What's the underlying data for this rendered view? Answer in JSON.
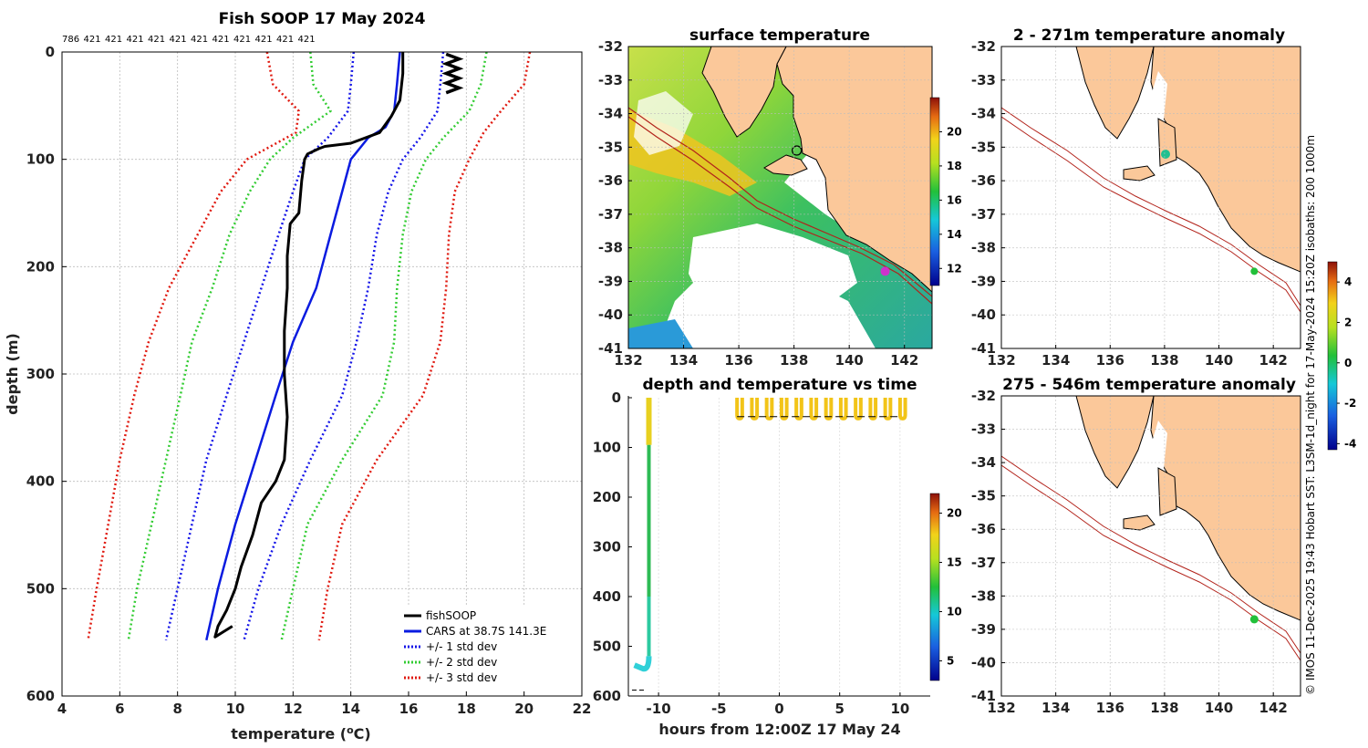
{
  "colors": {
    "fishsoop": "#000000",
    "cars": "#0a1be0",
    "std1": "#1515e8",
    "std2": "#33cc33",
    "std3": "#e01a10",
    "land": "#fbc89a",
    "isobath": "#b2221a"
  },
  "chart_data": [
    {
      "type": "line",
      "title": "Fish SOOP 17 May 2024",
      "xlabel": "temperature (",
      "xlabel_sup": "o",
      "xlabel_unit": "C)",
      "ylabel": "depth (m)",
      "xlim": [
        4,
        22
      ],
      "ylim": [
        600,
        0
      ],
      "xticks": [
        "4",
        "6",
        "8",
        "10",
        "12",
        "14",
        "16",
        "18",
        "20",
        "22"
      ],
      "yticks": [
        "0",
        "100",
        "200",
        "300",
        "400",
        "500",
        "600"
      ],
      "top_counts": [
        "786",
        "421",
        "421",
        "421",
        "421",
        "421",
        "421",
        "421",
        "421",
        "421",
        "421",
        "421"
      ],
      "legend": [
        "fishSOOP",
        "CARS at 38.7S 141.3E",
        "+/- 1 std dev",
        "+/- 2 std dev",
        "+/- 3 std dev"
      ],
      "series": [
        {
          "name": "CARS at 38.7S 141.3E",
          "depth": [
            0,
            30,
            55,
            70,
            80,
            100,
            130,
            170,
            220,
            270,
            320,
            380,
            440,
            500,
            548
          ],
          "temp": [
            15.7,
            15.6,
            15.5,
            15.2,
            14.6,
            14.0,
            13.7,
            13.3,
            12.8,
            12.0,
            11.4,
            10.7,
            10.0,
            9.4,
            9.0
          ]
        },
        {
          "name": "+/- 1 std dev (low)",
          "depth": [
            0,
            30,
            55,
            80,
            100,
            130,
            170,
            220,
            270,
            320,
            380,
            440,
            500,
            548
          ],
          "temp": [
            14.1,
            14.0,
            13.9,
            13.2,
            12.4,
            12.0,
            11.5,
            10.9,
            10.3,
            9.7,
            9.0,
            8.5,
            8.0,
            7.6
          ]
        },
        {
          "name": "+/- 1 std dev (high)",
          "depth": [
            0,
            30,
            55,
            80,
            100,
            130,
            170,
            220,
            270,
            320,
            380,
            440,
            500,
            548
          ],
          "temp": [
            17.2,
            17.1,
            17.0,
            16.4,
            15.8,
            15.3,
            14.9,
            14.6,
            14.2,
            13.7,
            12.6,
            11.6,
            10.8,
            10.3
          ]
        },
        {
          "name": "+/- 2 std dev (low)",
          "depth": [
            0,
            30,
            55,
            80,
            100,
            130,
            170,
            220,
            270,
            320,
            380,
            440,
            500,
            548
          ],
          "temp": [
            12.6,
            12.7,
            13.3,
            12.0,
            11.2,
            10.5,
            9.8,
            9.2,
            8.5,
            8.1,
            7.6,
            7.1,
            6.6,
            6.3
          ]
        },
        {
          "name": "+/- 2 std dev (high)",
          "depth": [
            0,
            30,
            55,
            80,
            100,
            130,
            170,
            220,
            270,
            320,
            380,
            440,
            500,
            548
          ],
          "temp": [
            18.7,
            18.5,
            18.1,
            17.2,
            16.6,
            16.1,
            15.8,
            15.6,
            15.5,
            15.1,
            13.7,
            12.5,
            12.0,
            11.6
          ]
        },
        {
          "name": "+/- 3 std dev (low)",
          "depth": [
            0,
            30,
            55,
            75,
            100,
            130,
            170,
            220,
            270,
            320,
            380,
            440,
            500,
            548
          ],
          "temp": [
            11.1,
            11.3,
            12.2,
            12.1,
            10.4,
            9.5,
            8.7,
            7.7,
            7.0,
            6.5,
            6.0,
            5.6,
            5.2,
            4.9
          ]
        },
        {
          "name": "+/- 3 std dev (high)",
          "depth": [
            0,
            30,
            55,
            75,
            100,
            130,
            170,
            220,
            270,
            320,
            380,
            440,
            500,
            548
          ],
          "temp": [
            20.2,
            20.0,
            19.2,
            18.6,
            18.1,
            17.6,
            17.4,
            17.3,
            17.1,
            16.5,
            14.9,
            13.7,
            13.2,
            12.9
          ]
        },
        {
          "name": "fishSOOP",
          "depth": [
            0,
            20,
            45,
            60,
            75,
            85,
            88,
            90,
            95,
            100,
            120,
            150,
            160,
            190,
            220,
            260,
            300,
            340,
            380,
            400,
            420,
            450,
            480,
            500,
            520,
            535,
            545,
            540,
            535
          ],
          "temp": [
            15.8,
            15.8,
            15.7,
            15.4,
            15.0,
            14.0,
            13.1,
            12.9,
            12.5,
            12.4,
            12.3,
            12.2,
            11.9,
            11.8,
            11.8,
            11.7,
            11.7,
            11.8,
            11.7,
            11.4,
            10.9,
            10.6,
            10.2,
            10.0,
            9.7,
            9.4,
            9.3,
            9.6,
            9.9
          ]
        }
      ]
    },
    {
      "type": "heatmap",
      "title": "surface temperature",
      "xticks": [
        "132",
        "134",
        "136",
        "138",
        "140",
        "142"
      ],
      "yticks": [
        "-32",
        "-33",
        "-34",
        "-35",
        "-36",
        "-37",
        "-38",
        "-39",
        "-40",
        "-41"
      ],
      "xlim": [
        132,
        143
      ],
      "ylim": [
        -41,
        -32
      ],
      "colorbar": {
        "range": [
          11,
          22
        ],
        "ticks": [
          "12",
          "14",
          "16",
          "18",
          "20"
        ]
      },
      "marker_lonlat": [
        141.3,
        -38.7
      ],
      "ring_lonlat": [
        138.1,
        -35.1
      ]
    },
    {
      "type": "scatter",
      "title": "depth and temperature vs time",
      "xlabel": "hours from 12:00Z 17 May 24",
      "xlim": [
        -12.5,
        12.5
      ],
      "ylim": [
        600,
        0
      ],
      "xticks": [
        "-10",
        "-5",
        "0",
        "5",
        "10"
      ],
      "yticks": [
        "0",
        "100",
        "200",
        "300",
        "400",
        "500",
        "600"
      ],
      "colorbar": {
        "range": [
          3,
          22
        ],
        "ticks": [
          "5",
          "10",
          "15",
          "20"
        ]
      },
      "dives": {
        "count": 12,
        "start_hour": -3.5,
        "end_hour": 10,
        "max_depth": 42,
        "temp_c": 18
      },
      "cast": {
        "hour": -10.8
      }
    },
    {
      "type": "heatmap",
      "title": "2 - 271m temperature anomaly",
      "xticks": [
        "132",
        "134",
        "136",
        "138",
        "140",
        "142"
      ],
      "yticks": [
        "-32",
        "-33",
        "-34",
        "-35",
        "-36",
        "-37",
        "-38",
        "-39",
        "-40",
        "-41"
      ],
      "xlim": [
        132,
        143
      ],
      "ylim": [
        -41,
        -32
      ],
      "colorbar": {
        "range": [
          -4.3,
          5
        ],
        "ticks": [
          "-4",
          "-2",
          "0",
          "2",
          "4"
        ]
      }
    },
    {
      "type": "heatmap",
      "title": "275 - 546m temperature anomaly",
      "xticks": [
        "132",
        "134",
        "136",
        "138",
        "140",
        "142"
      ],
      "yticks": [
        "-32",
        "-33",
        "-34",
        "-35",
        "-36",
        "-37",
        "-38",
        "-39",
        "-40",
        "-41"
      ],
      "xlim": [
        132,
        143
      ],
      "ylim": [
        -41,
        -32
      ]
    }
  ],
  "credit": "© IMOS 11-Dec-2025 19:43 Hobart SST: L3SM-1d_night for 17-May-2024 15:20Z isobaths: 200  1000m"
}
